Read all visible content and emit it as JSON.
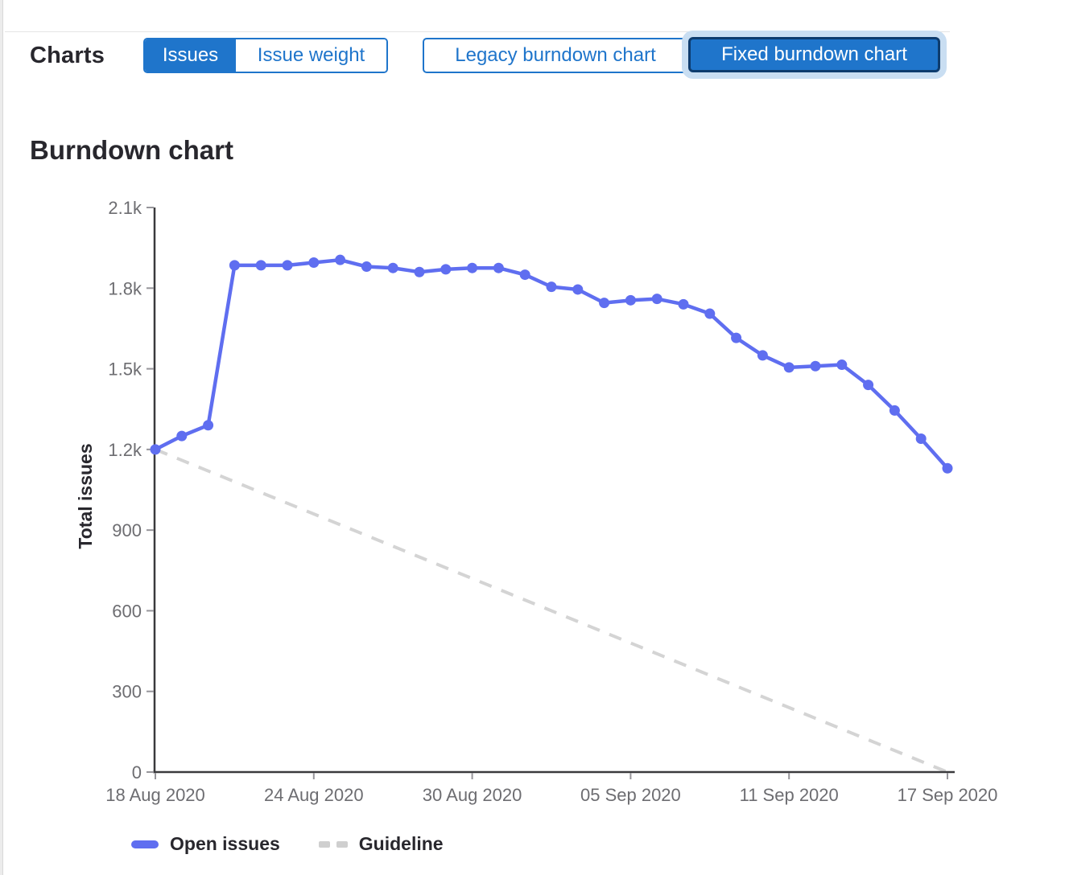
{
  "header": {
    "charts_label": "Charts",
    "issue_toggle": {
      "issues_label": "Issues",
      "issue_weight_label": "Issue weight",
      "selected": "Issues"
    },
    "chart_version_toggle": {
      "legacy_label": "Legacy burndown chart",
      "fixed_label": "Fixed burndown chart",
      "selected": "Fixed burndown chart"
    }
  },
  "section": {
    "title": "Burndown chart"
  },
  "colors": {
    "accent_blue": "#1f75cb",
    "focus_halo": "#c9def2",
    "focus_border": "#0e3c6e",
    "open_issues_line": "#5f6ef0",
    "guideline_gray": "#d4d4d4",
    "axis_line": "#3a3a3d",
    "tick_mark": "#96959a",
    "tick_label": "#6d6d71",
    "text_dark": "#28272d"
  },
  "chart_data": {
    "type": "line",
    "title": "Burndown chart",
    "xlabel": "",
    "ylabel": "Total issues",
    "ylim": [
      0,
      2100
    ],
    "grid": false,
    "legend_position": "bottom",
    "y_tick_values": [
      0,
      300,
      600,
      900,
      1200,
      1500,
      1800,
      2100
    ],
    "y_tick_labels": [
      "0",
      "300",
      "600",
      "900",
      "1.2k",
      "1.5k",
      "1.8k",
      "2.1k"
    ],
    "x_tick_indices": [
      0,
      6,
      12,
      18,
      24,
      30
    ],
    "x_tick_labels": [
      "18 Aug 2020",
      "24 Aug 2020",
      "30 Aug 2020",
      "05 Sep 2020",
      "11 Sep 2020",
      "17 Sep 2020"
    ],
    "dates": [
      "18 Aug 2020",
      "19 Aug 2020",
      "20 Aug 2020",
      "21 Aug 2020",
      "22 Aug 2020",
      "23 Aug 2020",
      "24 Aug 2020",
      "25 Aug 2020",
      "26 Aug 2020",
      "27 Aug 2020",
      "28 Aug 2020",
      "29 Aug 2020",
      "30 Aug 2020",
      "31 Aug 2020",
      "01 Sep 2020",
      "02 Sep 2020",
      "03 Sep 2020",
      "04 Sep 2020",
      "05 Sep 2020",
      "06 Sep 2020",
      "07 Sep 2020",
      "08 Sep 2020",
      "09 Sep 2020",
      "10 Sep 2020",
      "11 Sep 2020",
      "12 Sep 2020",
      "13 Sep 2020",
      "14 Sep 2020",
      "15 Sep 2020",
      "16 Sep 2020",
      "17 Sep 2020"
    ],
    "series": [
      {
        "name": "Open issues",
        "style": "solid",
        "color": "#5f6ef0",
        "values": [
          1200,
          1250,
          1290,
          1885,
          1885,
          1885,
          1895,
          1905,
          1880,
          1875,
          1860,
          1870,
          1875,
          1875,
          1850,
          1805,
          1795,
          1745,
          1755,
          1760,
          1740,
          1705,
          1615,
          1550,
          1505,
          1510,
          1515,
          1440,
          1345,
          1240,
          1130
        ]
      },
      {
        "name": "Guideline",
        "style": "dashed",
        "color": "#d4d4d4",
        "start_value": 1200,
        "end_value": 0
      }
    ]
  }
}
